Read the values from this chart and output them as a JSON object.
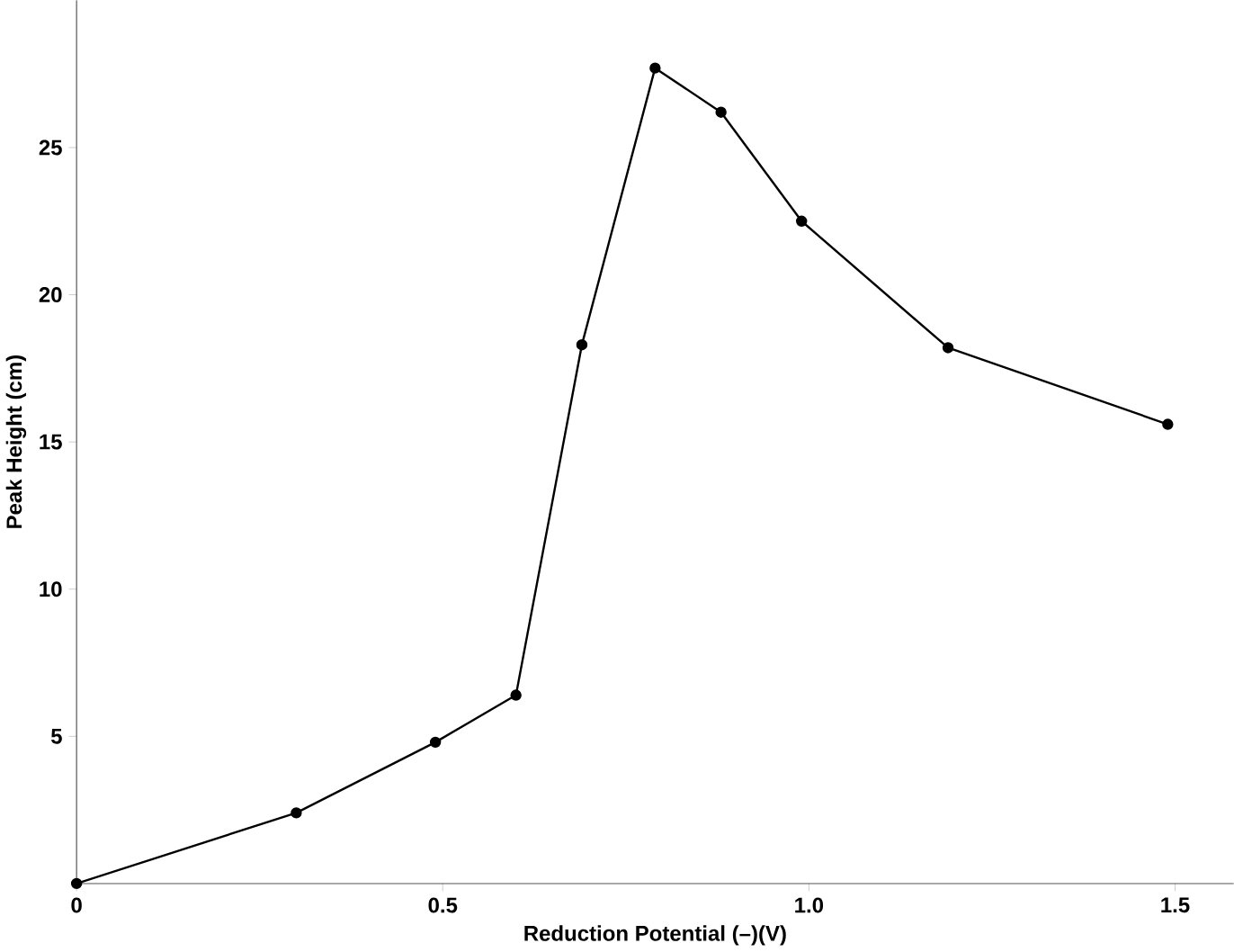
{
  "chart_data": {
    "type": "line",
    "xlabel": "Reduction Potential (–)(V)",
    "ylabel": "Peak Height (cm)",
    "x": [
      0,
      0.3,
      0.49,
      0.6,
      0.69,
      0.79,
      0.88,
      0.99,
      1.19,
      1.49
    ],
    "values": [
      0,
      2.4,
      4.8,
      6.4,
      18.3,
      27.7,
      26.2,
      22.5,
      18.2,
      15.6
    ],
    "color": "#000000",
    "marker": "circle",
    "line_style": "solid",
    "xlim": [
      0,
      1.58
    ],
    "ylim": [
      0,
      30
    ],
    "xticks": [
      0,
      0.5,
      {
        "value": 1.0,
        "label": "1.0"
      },
      1.5
    ],
    "yticks": [
      5,
      10,
      15,
      20,
      25
    ]
  }
}
